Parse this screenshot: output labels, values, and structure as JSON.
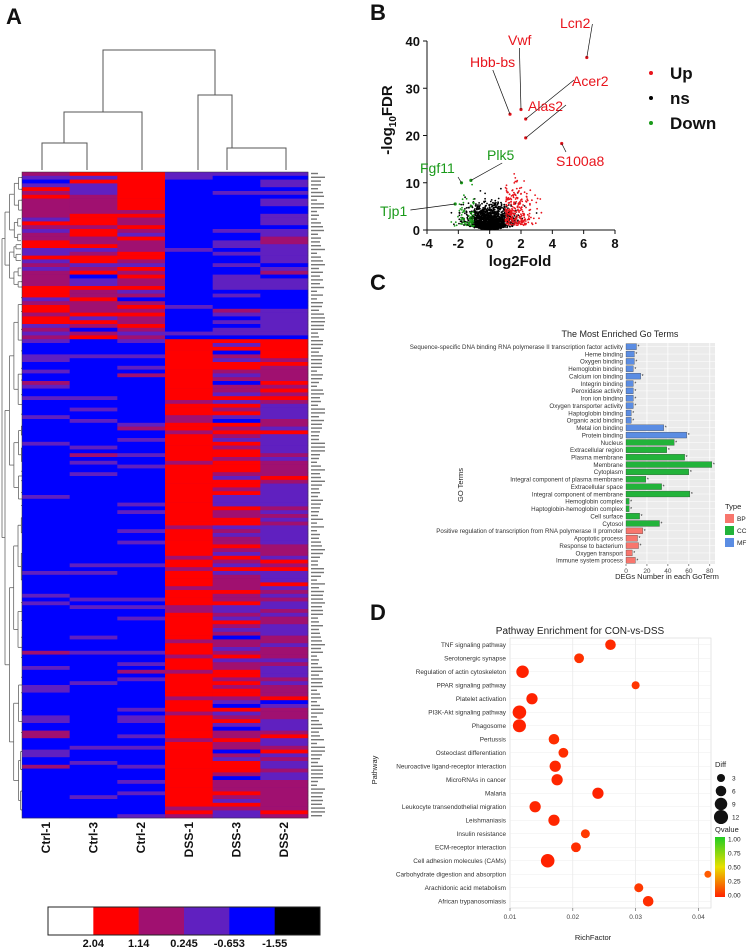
{
  "panels": {
    "a": "A",
    "b": "B",
    "c": "C",
    "d": "D"
  },
  "heatmap": {
    "samples": [
      "Ctrl-1",
      "Ctrl-3",
      "Ctrl-2",
      "DSS-1",
      "DSS-3",
      "DSS-2"
    ],
    "colorbar": {
      "labels": [
        "2.04",
        "1.14",
        "0.245",
        "-0.653",
        "-1.55"
      ],
      "colors": [
        "#ffffff",
        "#ff0000",
        "#a01070",
        "#6020c0",
        "#0000ff",
        "#000000"
      ]
    }
  },
  "chart_data": [
    {
      "type": "scatter",
      "panel": "B",
      "xlabel": "log2Fold",
      "ylabel": "-log10FDR",
      "ylabel_parts": {
        "pre": "-log",
        "sub": "10",
        "post": "FDR"
      },
      "xlim": [
        -4,
        8
      ],
      "ylim": [
        0,
        40
      ],
      "xticks": [
        "-4",
        "-2",
        "0",
        "2",
        "4",
        "6",
        "8"
      ],
      "yticks": [
        "0",
        "10",
        "20",
        "30",
        "40"
      ],
      "legend": [
        {
          "label": "Up",
          "color": "#e8141c"
        },
        {
          "label": "ns",
          "color": "#000000"
        },
        {
          "label": "Down",
          "color": "#1a9a1a"
        }
      ],
      "labeled_points": [
        {
          "label": "Lcn2",
          "x": 6.2,
          "y": 36.5,
          "group": "Up"
        },
        {
          "label": "Vwf",
          "x": 2.0,
          "y": 25.5,
          "group": "Up"
        },
        {
          "label": "Hbb-bs",
          "x": 1.3,
          "y": 24.5,
          "group": "Up"
        },
        {
          "label": "Acer2",
          "x": 2.3,
          "y": 23.5,
          "group": "Up"
        },
        {
          "label": "Alas2",
          "x": 2.3,
          "y": 19.5,
          "group": "Up"
        },
        {
          "label": "S100a8",
          "x": 4.6,
          "y": 18.3,
          "group": "Up"
        },
        {
          "label": "Plk5",
          "x": -1.2,
          "y": 10.5,
          "group": "Down"
        },
        {
          "label": "Fgf11",
          "x": -1.8,
          "y": 10.0,
          "group": "Down"
        },
        {
          "label": "Tjp1",
          "x": -2.2,
          "y": 5.5,
          "group": "Down"
        }
      ]
    },
    {
      "type": "bar",
      "panel": "C",
      "title": "The Most Enriched Go Terms",
      "xlabel": "DEGs Number in each GoTerm",
      "ylabel": "GO Terms",
      "xlim": [
        0,
        85
      ],
      "xticks": [
        "0",
        "20",
        "40",
        "60",
        "80"
      ],
      "legend_title": "Type",
      "legend": [
        {
          "label": "BP",
          "color": "#f8766d"
        },
        {
          "label": "CC",
          "color": "#22b33a"
        },
        {
          "label": "MF",
          "color": "#5b8de3"
        }
      ],
      "categories": [
        "Sequence-specific DNA binding RNA polymerase II transcription factor activity",
        "Heme binding",
        "Oxygen binding",
        "Hemoglobin binding",
        "Calcium ion binding",
        "Integrin binding",
        "Peroxidase activity",
        "Iron ion binding",
        "Oxygen transporter activity",
        "Haptoglobin binding",
        "Organic acid binding",
        "Metal ion binding",
        "Protein binding",
        "Nucleus",
        "Extracellular region",
        "Plasma membrane",
        "Membrane",
        "Cytoplasm",
        "Integral component of plasma membrane",
        "Extracellular space",
        "Integral component of membrane",
        "Hemoglobin complex",
        "Haptoglobin-hemoglobin complex",
        "Cell surface",
        "Cytosol",
        "Positive regulation of transcription from RNA polymerase II promoter",
        "Apoptotic process",
        "Response to bacterium",
        "Oxygen transport",
        "Immune system process"
      ],
      "values": [
        10,
        8,
        8,
        7,
        14,
        7,
        7,
        7,
        7,
        5,
        5,
        36,
        58,
        46,
        39,
        56,
        82,
        60,
        19,
        34,
        61,
        3,
        3,
        13,
        32,
        16,
        11,
        12,
        6,
        9
      ],
      "types": [
        "MF",
        "MF",
        "MF",
        "MF",
        "MF",
        "MF",
        "MF",
        "MF",
        "MF",
        "MF",
        "MF",
        "MF",
        "MF",
        "CC",
        "CC",
        "CC",
        "CC",
        "CC",
        "CC",
        "CC",
        "CC",
        "CC",
        "CC",
        "CC",
        "CC",
        "BP",
        "BP",
        "BP",
        "BP",
        "BP"
      ]
    },
    {
      "type": "scatter",
      "panel": "D",
      "title": "Pathway Enrichment for CON-vs-DSS",
      "xlabel": "RichFactor",
      "ylabel": "Pathway",
      "xlim": [
        0.01,
        0.042
      ],
      "xticks": [
        0.01,
        0.02,
        0.03,
        0.04
      ],
      "xtick_labels": [
        "0.01",
        "0.02",
        "0.03",
        "0.04"
      ],
      "size_legend_title": "Diff",
      "size_legend": [
        3,
        6,
        9,
        12
      ],
      "color_legend_title": "Qvalue",
      "color_legend_ticks": [
        "1.00",
        "0.75",
        "0.50",
        "0.25",
        "0.00"
      ],
      "categories": [
        "TNF signaling pathway",
        "Serotonergic synapse",
        "Regulation of actin cytoskeleton",
        "PPAR signaling pathway",
        "Platelet activation",
        "PI3K-Akt signaling pathway",
        "Phagosome",
        "Pertussis",
        "Osteoclast differentiation",
        "Neuroactive ligand-receptor interaction",
        "MicroRNAs in cancer",
        "Malaria",
        "Leukocyte transendothelial migration",
        "Leishmaniasis",
        "Insulin resistance",
        "ECM-receptor interaction",
        "Cell adhesion molecules (CAMs)",
        "Carbohydrate digestion and absorption",
        "Arachidonic acid metabolism",
        "African trypanosomiasis"
      ],
      "x": [
        0.026,
        0.021,
        0.012,
        0.03,
        0.0135,
        0.0115,
        0.0115,
        0.017,
        0.0185,
        0.0172,
        0.0175,
        0.024,
        0.014,
        0.017,
        0.022,
        0.0205,
        0.016,
        0.0415,
        0.0305,
        0.032
      ],
      "size": [
        6,
        5,
        9,
        3,
        7,
        11,
        10,
        6,
        5,
        7,
        7,
        7,
        7,
        7,
        4,
        5,
        11,
        2,
        4,
        6
      ],
      "qvalue": [
        0.02,
        0.04,
        0.0,
        0.05,
        0.0,
        0.0,
        0.0,
        0.03,
        0.03,
        0.01,
        0.01,
        0.0,
        0.01,
        0.01,
        0.06,
        0.03,
        0.0,
        0.15,
        0.06,
        0.03
      ]
    }
  ]
}
